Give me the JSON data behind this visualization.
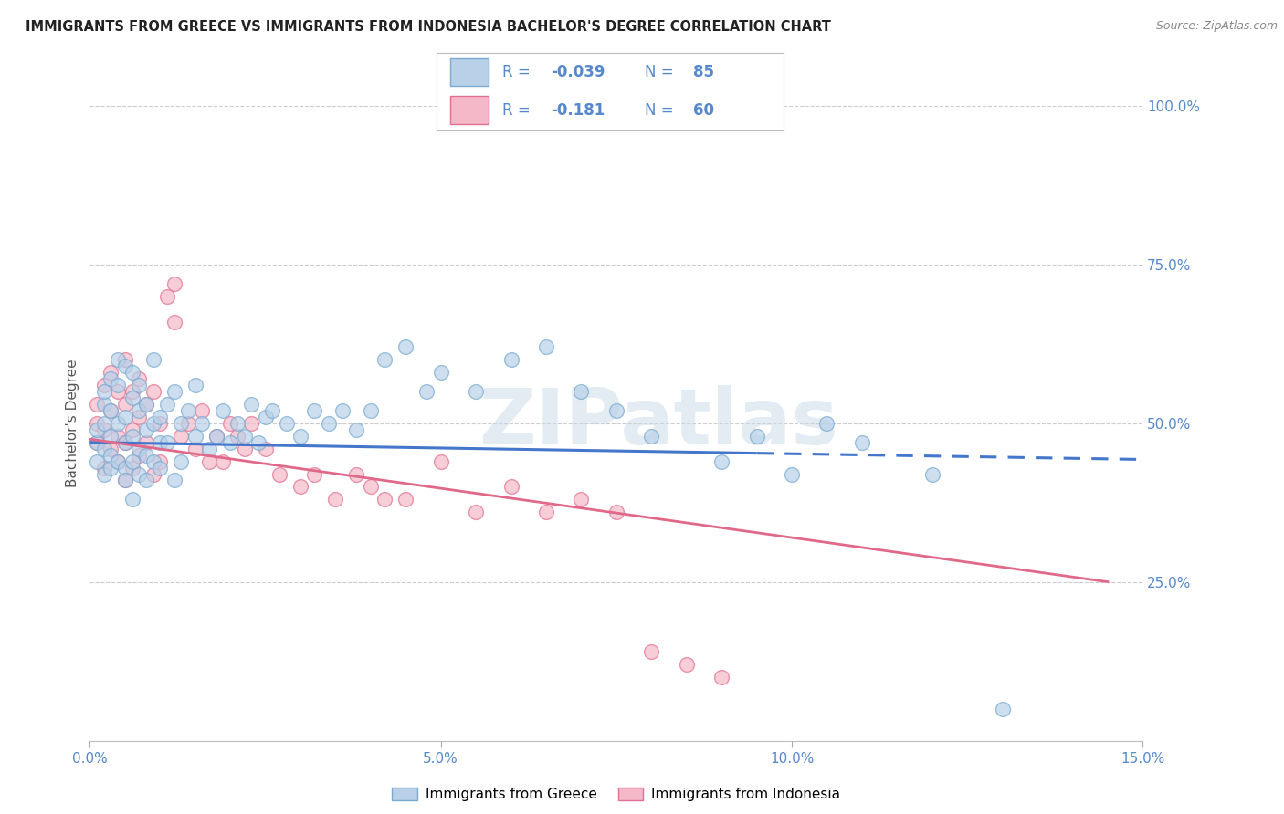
{
  "title": "IMMIGRANTS FROM GREECE VS IMMIGRANTS FROM INDONESIA BACHELOR'S DEGREE CORRELATION CHART",
  "source": "Source: ZipAtlas.com",
  "ylabel": "Bachelor's Degree",
  "xlim": [
    0.0,
    0.15
  ],
  "ylim": [
    0.0,
    1.0
  ],
  "xtick_vals": [
    0.0,
    0.05,
    0.1,
    0.15
  ],
  "xtick_labels": [
    "0.0%",
    "5.0%",
    "10.0%",
    "15.0%"
  ],
  "ytick_vals": [
    0.0,
    0.25,
    0.5,
    0.75,
    1.0
  ],
  "ytick_labels": [
    "",
    "25.0%",
    "50.0%",
    "75.0%",
    "100.0%"
  ],
  "greece_color": "#b8d0e8",
  "indonesia_color": "#f5b8c8",
  "greece_edge_color": "#7aaad0",
  "indonesia_edge_color": "#e07090",
  "line_greece_color": "#4477cc",
  "line_indonesia_color": "#e06888",
  "line_greece_solid_end": 0.095,
  "line_greece_end": 0.15,
  "line_indonesia_end": 0.145,
  "R_greece": -0.039,
  "N_greece": 85,
  "R_indonesia": -0.181,
  "N_indonesia": 60,
  "greece_line_intercept": 0.47,
  "greece_line_slope": -0.18,
  "indonesia_line_intercept": 0.475,
  "indonesia_line_slope": -1.55,
  "watermark": "ZIPatlas",
  "watermark_color": "#c8d8e8",
  "background_color": "#ffffff",
  "grid_color": "#cccccc",
  "tick_label_color": "#5588cc",
  "title_color": "#222222",
  "source_color": "#888888",
  "ylabel_color": "#555555",
  "legend_text_color": "#5588cc",
  "legend_box_color": "#aaaaaa",
  "scatter_size": 130,
  "scatter_alpha": 0.7,
  "greece_x": [
    0.001,
    0.001,
    0.001,
    0.002,
    0.002,
    0.002,
    0.002,
    0.002,
    0.003,
    0.003,
    0.003,
    0.003,
    0.003,
    0.004,
    0.004,
    0.004,
    0.004,
    0.005,
    0.005,
    0.005,
    0.005,
    0.005,
    0.006,
    0.006,
    0.006,
    0.006,
    0.006,
    0.007,
    0.007,
    0.007,
    0.007,
    0.008,
    0.008,
    0.008,
    0.008,
    0.009,
    0.009,
    0.009,
    0.01,
    0.01,
    0.01,
    0.011,
    0.011,
    0.012,
    0.012,
    0.013,
    0.013,
    0.014,
    0.015,
    0.015,
    0.016,
    0.017,
    0.018,
    0.019,
    0.02,
    0.021,
    0.022,
    0.023,
    0.024,
    0.025,
    0.026,
    0.028,
    0.03,
    0.032,
    0.034,
    0.036,
    0.038,
    0.04,
    0.042,
    0.045,
    0.048,
    0.05,
    0.055,
    0.06,
    0.065,
    0.07,
    0.075,
    0.08,
    0.09,
    0.095,
    0.1,
    0.105,
    0.11,
    0.12,
    0.13
  ],
  "greece_y": [
    0.47,
    0.49,
    0.44,
    0.5,
    0.53,
    0.46,
    0.42,
    0.55,
    0.48,
    0.52,
    0.45,
    0.57,
    0.43,
    0.56,
    0.5,
    0.44,
    0.6,
    0.47,
    0.51,
    0.43,
    0.59,
    0.41,
    0.54,
    0.48,
    0.44,
    0.58,
    0.38,
    0.52,
    0.46,
    0.42,
    0.56,
    0.49,
    0.45,
    0.53,
    0.41,
    0.5,
    0.44,
    0.6,
    0.47,
    0.51,
    0.43,
    0.53,
    0.47,
    0.55,
    0.41,
    0.5,
    0.44,
    0.52,
    0.48,
    0.56,
    0.5,
    0.46,
    0.48,
    0.52,
    0.47,
    0.5,
    0.48,
    0.53,
    0.47,
    0.51,
    0.52,
    0.5,
    0.48,
    0.52,
    0.5,
    0.52,
    0.49,
    0.52,
    0.6,
    0.62,
    0.55,
    0.58,
    0.55,
    0.6,
    0.62,
    0.55,
    0.52,
    0.48,
    0.44,
    0.48,
    0.42,
    0.5,
    0.47,
    0.42,
    0.05
  ],
  "indonesia_x": [
    0.001,
    0.001,
    0.001,
    0.002,
    0.002,
    0.002,
    0.003,
    0.003,
    0.003,
    0.004,
    0.004,
    0.004,
    0.005,
    0.005,
    0.005,
    0.005,
    0.006,
    0.006,
    0.006,
    0.007,
    0.007,
    0.007,
    0.008,
    0.008,
    0.009,
    0.009,
    0.01,
    0.01,
    0.011,
    0.012,
    0.012,
    0.013,
    0.014,
    0.015,
    0.016,
    0.017,
    0.018,
    0.019,
    0.02,
    0.021,
    0.022,
    0.023,
    0.025,
    0.027,
    0.03,
    0.032,
    0.035,
    0.038,
    0.04,
    0.042,
    0.045,
    0.05,
    0.055,
    0.06,
    0.065,
    0.07,
    0.075,
    0.08,
    0.085,
    0.09
  ],
  "indonesia_y": [
    0.5,
    0.53,
    0.47,
    0.56,
    0.49,
    0.43,
    0.52,
    0.46,
    0.58,
    0.55,
    0.48,
    0.44,
    0.6,
    0.53,
    0.47,
    0.41,
    0.55,
    0.49,
    0.43,
    0.57,
    0.51,
    0.45,
    0.53,
    0.47,
    0.55,
    0.42,
    0.5,
    0.44,
    0.7,
    0.72,
    0.66,
    0.48,
    0.5,
    0.46,
    0.52,
    0.44,
    0.48,
    0.44,
    0.5,
    0.48,
    0.46,
    0.5,
    0.46,
    0.42,
    0.4,
    0.42,
    0.38,
    0.42,
    0.4,
    0.38,
    0.38,
    0.44,
    0.36,
    0.4,
    0.36,
    0.38,
    0.36,
    0.14,
    0.12,
    0.1
  ]
}
